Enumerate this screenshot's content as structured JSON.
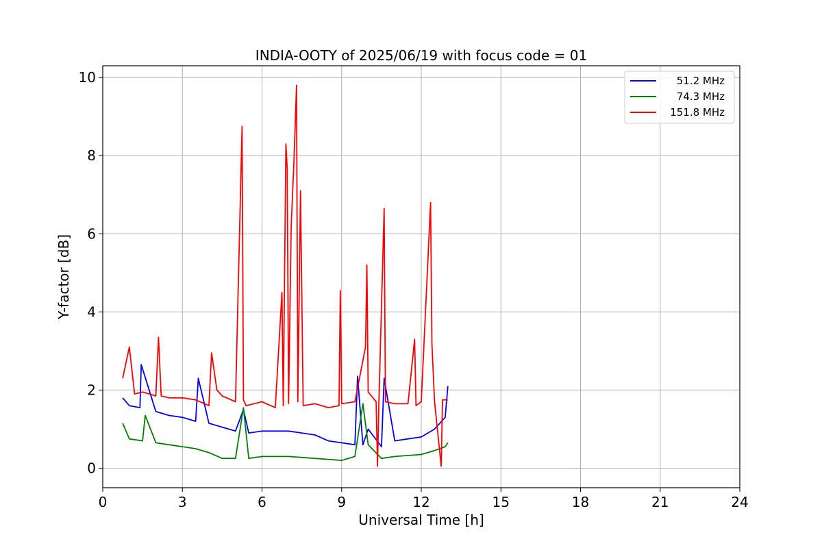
{
  "chart_data": {
    "type": "line",
    "title": "INDIA-OOTY of 2025/06/19 with focus code = 01",
    "xlabel": "Universal Time [h]",
    "ylabel": "Y-factor [dB]",
    "xlim": [
      0,
      24
    ],
    "ylim": [
      -0.5,
      10.3
    ],
    "xticks": [
      0,
      3,
      6,
      9,
      12,
      15,
      18,
      21,
      24
    ],
    "yticks": [
      0,
      2,
      4,
      6,
      8,
      10
    ],
    "grid": true,
    "legend_position": "top-right",
    "series": [
      {
        "name": "51.2 MHz",
        "color": "#0000ff",
        "x": [
          0.75,
          1.0,
          1.4,
          1.45,
          2.0,
          2.5,
          3.0,
          3.5,
          3.6,
          4.0,
          4.5,
          5.0,
          5.3,
          5.5,
          6.0,
          6.5,
          7.0,
          7.5,
          8.0,
          8.5,
          9.0,
          9.5,
          9.6,
          9.8,
          10.0,
          10.5,
          10.6,
          11.0,
          11.5,
          12.0,
          12.5,
          12.9,
          13.0
        ],
        "y": [
          1.8,
          1.6,
          1.55,
          2.65,
          1.45,
          1.35,
          1.3,
          1.2,
          2.3,
          1.15,
          1.05,
          0.95,
          1.5,
          0.9,
          0.95,
          0.95,
          0.95,
          0.9,
          0.85,
          0.7,
          0.65,
          0.6,
          2.35,
          0.6,
          1.0,
          0.55,
          2.3,
          0.7,
          0.75,
          0.8,
          1.0,
          1.3,
          2.1
        ]
      },
      {
        "name": "74.3 MHz",
        "color": "#008000",
        "x": [
          0.75,
          1.0,
          1.5,
          1.6,
          2.0,
          2.5,
          3.0,
          3.5,
          4.0,
          4.5,
          5.0,
          5.3,
          5.5,
          6.0,
          7.0,
          8.0,
          9.0,
          9.5,
          9.8,
          10.0,
          10.5,
          11.0,
          12.0,
          12.5,
          12.9,
          13.0
        ],
        "y": [
          1.15,
          0.75,
          0.7,
          1.35,
          0.65,
          0.6,
          0.55,
          0.5,
          0.4,
          0.25,
          0.25,
          1.55,
          0.25,
          0.3,
          0.3,
          0.25,
          0.2,
          0.3,
          1.65,
          0.6,
          0.25,
          0.3,
          0.35,
          0.45,
          0.55,
          0.65
        ]
      },
      {
        "name": "151.8 MHz",
        "color": "#ff0000",
        "x": [
          0.75,
          1.0,
          1.2,
          1.5,
          2.0,
          2.1,
          2.2,
          2.5,
          3.0,
          3.5,
          4.0,
          4.1,
          4.3,
          4.5,
          5.0,
          5.25,
          5.3,
          5.4,
          6.0,
          6.5,
          6.75,
          6.8,
          6.9,
          6.95,
          7.0,
          7.1,
          7.2,
          7.3,
          7.35,
          7.45,
          7.55,
          8.0,
          8.5,
          8.9,
          8.95,
          9.0,
          9.5,
          9.9,
          9.95,
          10.0,
          10.3,
          10.35,
          10.4,
          10.6,
          10.65,
          11.0,
          11.5,
          11.75,
          11.8,
          12.0,
          12.35,
          12.4,
          12.5,
          12.75,
          12.8,
          13.0
        ],
        "y": [
          2.3,
          3.1,
          1.9,
          1.95,
          1.85,
          3.35,
          1.85,
          1.8,
          1.8,
          1.75,
          1.6,
          2.95,
          2.0,
          1.85,
          1.7,
          8.75,
          1.75,
          1.6,
          1.7,
          1.55,
          4.5,
          1.6,
          8.3,
          7.65,
          1.65,
          6.2,
          7.8,
          9.8,
          1.7,
          7.1,
          1.6,
          1.65,
          1.55,
          1.6,
          4.55,
          1.65,
          1.7,
          3.1,
          5.2,
          1.95,
          1.7,
          0.05,
          1.6,
          6.65,
          1.7,
          1.65,
          1.65,
          3.3,
          1.6,
          1.7,
          6.8,
          3.2,
          1.7,
          0.05,
          1.75,
          1.75
        ]
      }
    ]
  }
}
